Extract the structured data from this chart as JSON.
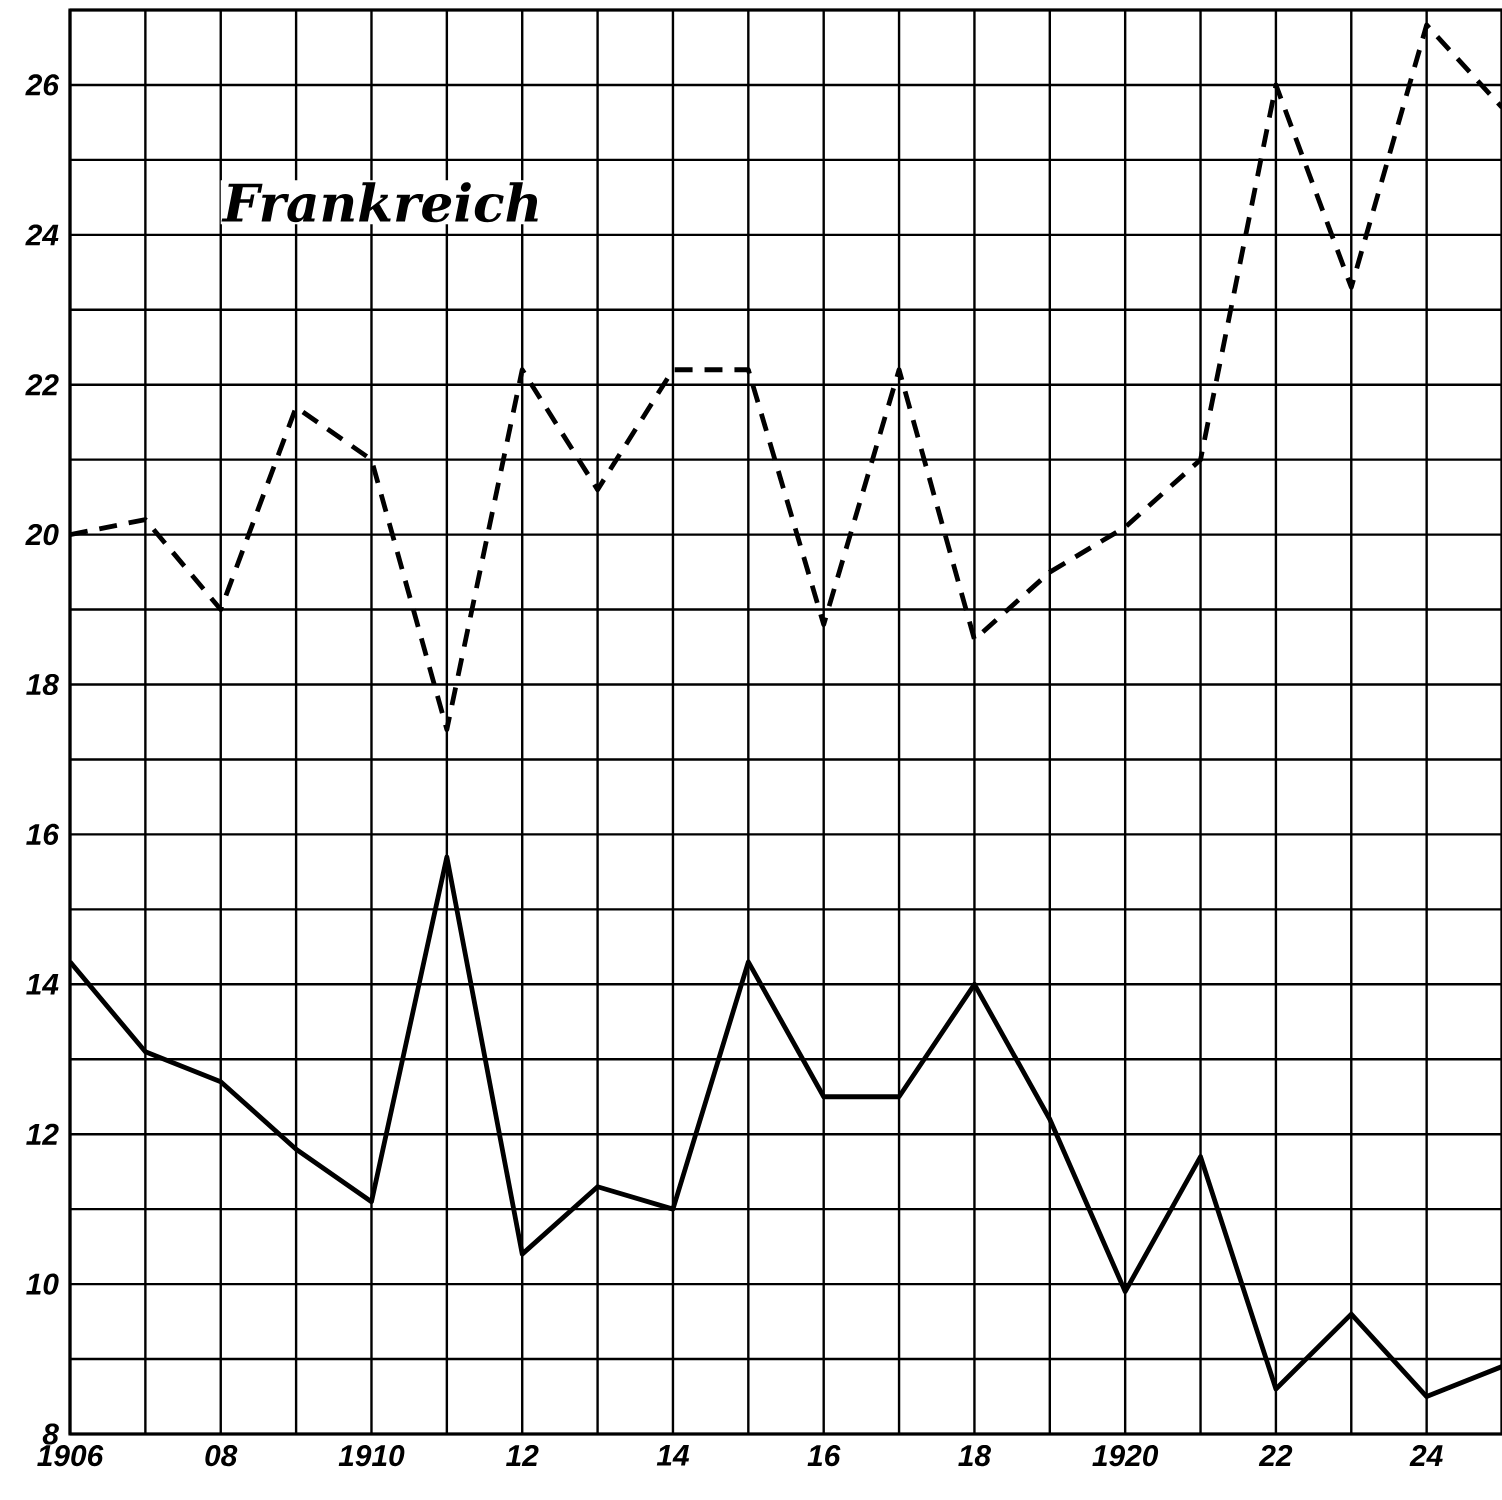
{
  "chart_data": {
    "type": "line",
    "title": "Frankreich",
    "x": [
      1906,
      1907,
      1908,
      1909,
      1910,
      1911,
      1912,
      1913,
      1914,
      1915,
      1916,
      1917,
      1918,
      1919,
      1920,
      1921,
      1922,
      1923,
      1924,
      1925
    ],
    "series": [
      {
        "color": "#000000",
        "line_style": "dashed",
        "values": [
          20.0,
          20.2,
          19.0,
          21.7,
          21.0,
          17.4,
          22.2,
          20.6,
          22.2,
          22.2,
          18.8,
          22.2,
          18.6,
          19.5,
          20.1,
          21.0,
          26.0,
          23.3,
          26.8,
          25.7
        ]
      },
      {
        "color": "#000000",
        "line_style": "solid",
        "values": [
          14.3,
          13.1,
          12.7,
          11.8,
          11.1,
          15.7,
          10.4,
          11.3,
          11.0,
          14.3,
          12.5,
          12.5,
          14.0,
          12.2,
          9.9,
          11.7,
          8.6,
          9.6,
          8.5,
          8.9
        ]
      }
    ],
    "xlim": [
      1906,
      1925
    ],
    "ylim": [
      8,
      27
    ],
    "xticks": [
      {
        "value": 1906,
        "label": "1906"
      },
      {
        "value": 1907,
        "label": null
      },
      {
        "value": 1908,
        "label": "08"
      },
      {
        "value": 1909,
        "label": null
      },
      {
        "value": 1910,
        "label": "1910"
      },
      {
        "value": 1911,
        "label": null
      },
      {
        "value": 1912,
        "label": "12"
      },
      {
        "value": 1913,
        "label": null
      },
      {
        "value": 1914,
        "label": "14"
      },
      {
        "value": 1915,
        "label": null
      },
      {
        "value": 1916,
        "label": "16"
      },
      {
        "value": 1917,
        "label": null
      },
      {
        "value": 1918,
        "label": "18"
      },
      {
        "value": 1919,
        "label": null
      },
      {
        "value": 1920,
        "label": "1920"
      },
      {
        "value": 1921,
        "label": null
      },
      {
        "value": 1922,
        "label": "22"
      },
      {
        "value": 1923,
        "label": null
      },
      {
        "value": 1924,
        "label": "24"
      },
      {
        "value": 1925,
        "label": null
      }
    ],
    "yticks": [
      8,
      {
        "value": 9,
        "label": null
      },
      10,
      {
        "value": 11,
        "label": null
      },
      12,
      {
        "value": 13,
        "label": null
      },
      14,
      {
        "value": 15,
        "label": null
      },
      16,
      {
        "value": 17,
        "label": null
      },
      18,
      {
        "value": 19,
        "label": null
      },
      20,
      {
        "value": 21,
        "label": null
      },
      22,
      {
        "value": 23,
        "label": null
      },
      24,
      {
        "value": 25,
        "label": null
      },
      26,
      {
        "value": 27,
        "label": null
      }
    ],
    "grid": true,
    "marker": "none"
  }
}
